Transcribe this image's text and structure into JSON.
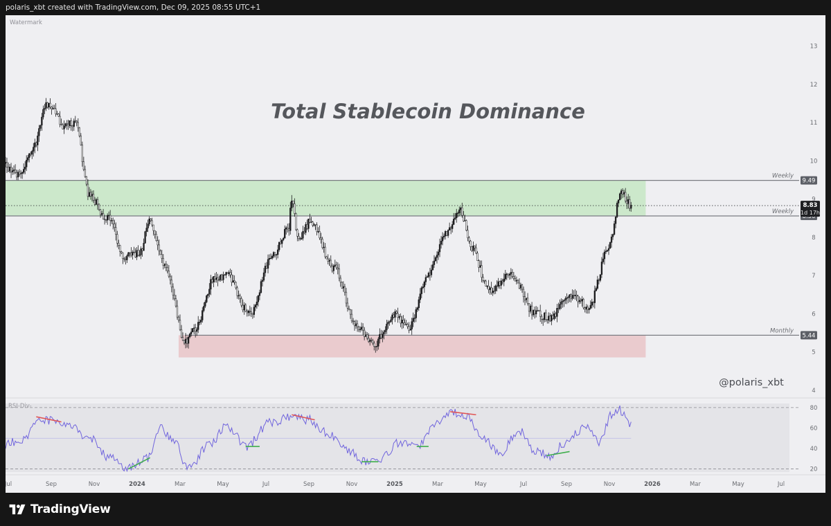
{
  "header": {
    "caption": "polaris_xbt created with TradingView.com, Dec 09, 2025 08:55 UTC+1"
  },
  "footer": {
    "brand": "TradingView"
  },
  "chart": {
    "watermark": "Watermark",
    "title": "Total Stablecoin Dominance",
    "author_tag": "@polaris_xbt",
    "indicator_label": "RSI-Div-"
  },
  "chart_data": [
    {
      "type": "candlestick",
      "title": "Total Stablecoin Dominance",
      "y_ticks": [
        4,
        5,
        6,
        7,
        8,
        9,
        10,
        11,
        12,
        13
      ],
      "ylim": [
        3.8,
        13.7
      ],
      "x_ticks": [
        "Jul",
        "Sep",
        "Nov",
        "2024",
        "Mar",
        "May",
        "Jul",
        "Sep",
        "Nov",
        "2025",
        "Mar",
        "May",
        "Jul",
        "Sep",
        "Nov",
        "2026",
        "Mar",
        "May",
        "Jul"
      ],
      "approx_path": [
        {
          "date": "2023-06-25",
          "value": 9.9
        },
        {
          "date": "2023-07-15",
          "value": 9.6
        },
        {
          "date": "2023-08-05",
          "value": 10.3
        },
        {
          "date": "2023-08-25",
          "value": 11.5
        },
        {
          "date": "2023-09-20",
          "value": 10.9
        },
        {
          "date": "2023-10-05",
          "value": 11.0
        },
        {
          "date": "2023-10-25",
          "value": 9.1
        },
        {
          "date": "2023-11-20",
          "value": 8.5
        },
        {
          "date": "2023-12-15",
          "value": 7.5
        },
        {
          "date": "2024-01-05",
          "value": 7.6
        },
        {
          "date": "2024-01-20",
          "value": 8.4
        },
        {
          "date": "2024-02-10",
          "value": 7.3
        },
        {
          "date": "2024-03-10",
          "value": 5.3
        },
        {
          "date": "2024-03-25",
          "value": 5.6
        },
        {
          "date": "2024-04-20",
          "value": 6.9
        },
        {
          "date": "2024-05-10",
          "value": 7.0
        },
        {
          "date": "2024-06-10",
          "value": 6.0
        },
        {
          "date": "2024-07-15",
          "value": 7.6
        },
        {
          "date": "2024-08-05",
          "value": 8.2
        },
        {
          "date": "2024-08-10",
          "value": 9.0
        },
        {
          "date": "2024-08-20",
          "value": 7.9
        },
        {
          "date": "2024-09-05",
          "value": 8.4
        },
        {
          "date": "2024-10-10",
          "value": 7.2
        },
        {
          "date": "2024-11-10",
          "value": 5.7
        },
        {
          "date": "2024-12-05",
          "value": 5.2
        },
        {
          "date": "2025-01-05",
          "value": 6.0
        },
        {
          "date": "2025-01-25",
          "value": 5.6
        },
        {
          "date": "2025-02-20",
          "value": 7.0
        },
        {
          "date": "2025-03-20",
          "value": 8.1
        },
        {
          "date": "2025-04-08",
          "value": 8.7
        },
        {
          "date": "2025-04-25",
          "value": 7.7
        },
        {
          "date": "2025-05-20",
          "value": 6.6
        },
        {
          "date": "2025-06-20",
          "value": 7.0
        },
        {
          "date": "2025-07-25",
          "value": 6.0
        },
        {
          "date": "2025-08-15",
          "value": 5.9
        },
        {
          "date": "2025-09-10",
          "value": 6.5
        },
        {
          "date": "2025-10-10",
          "value": 6.2
        },
        {
          "date": "2025-11-05",
          "value": 7.6
        },
        {
          "date": "2025-11-25",
          "value": 9.2
        },
        {
          "date": "2025-12-09",
          "value": 8.83
        }
      ],
      "levels": [
        {
          "label": "Weekly",
          "value": 9.49
        },
        {
          "label": "Weekly",
          "value": 8.56
        },
        {
          "label": "Monthly",
          "value": 5.44
        }
      ],
      "zones": [
        {
          "y_top": 9.49,
          "y_bottom": 8.56,
          "x_start": "2023-06-25",
          "x_end": "2025-12-30",
          "color": "#c5e6c4"
        },
        {
          "y_top": 5.44,
          "y_bottom": 4.86,
          "x_start": "2024-03-01",
          "x_end": "2025-12-30",
          "color": "#e9c4c8"
        }
      ],
      "last_price": "8.83",
      "countdown": "1d 17h",
      "dotted_line_value": 8.83
    },
    {
      "type": "line",
      "title": "RSI-Div-",
      "y_ticks": [
        20,
        40,
        60,
        80
      ],
      "ylim": [
        17,
        84
      ],
      "reference_lines": [
        20,
        50,
        80
      ],
      "series_color": "#7064dd",
      "approx_path": [
        {
          "date": "2023-06-25",
          "value": 44
        },
        {
          "date": "2023-07-25",
          "value": 50
        },
        {
          "date": "2023-08-15",
          "value": 70
        },
        {
          "date": "2023-09-05",
          "value": 66
        },
        {
          "date": "2023-09-25",
          "value": 62
        },
        {
          "date": "2023-10-25",
          "value": 50
        },
        {
          "date": "2023-11-25",
          "value": 30
        },
        {
          "date": "2023-12-20",
          "value": 20
        },
        {
          "date": "2024-01-15",
          "value": 30
        },
        {
          "date": "2024-02-05",
          "value": 60
        },
        {
          "date": "2024-02-25",
          "value": 45
        },
        {
          "date": "2024-03-15",
          "value": 20
        },
        {
          "date": "2024-04-15",
          "value": 45
        },
        {
          "date": "2024-05-10",
          "value": 62
        },
        {
          "date": "2024-06-05",
          "value": 42
        },
        {
          "date": "2024-07-10",
          "value": 65
        },
        {
          "date": "2024-08-10",
          "value": 72
        },
        {
          "date": "2024-09-05",
          "value": 68
        },
        {
          "date": "2024-09-30",
          "value": 55
        },
        {
          "date": "2024-10-25",
          "value": 40
        },
        {
          "date": "2024-11-25",
          "value": 27
        },
        {
          "date": "2024-12-15",
          "value": 30
        },
        {
          "date": "2025-01-10",
          "value": 45
        },
        {
          "date": "2025-02-05",
          "value": 42
        },
        {
          "date": "2025-03-05",
          "value": 65
        },
        {
          "date": "2025-03-25",
          "value": 75
        },
        {
          "date": "2025-04-15",
          "value": 72
        },
        {
          "date": "2025-05-10",
          "value": 50
        },
        {
          "date": "2025-06-05",
          "value": 35
        },
        {
          "date": "2025-07-01",
          "value": 58
        },
        {
          "date": "2025-07-25",
          "value": 38
        },
        {
          "date": "2025-08-15",
          "value": 33
        },
        {
          "date": "2025-09-05",
          "value": 45
        },
        {
          "date": "2025-10-05",
          "value": 62
        },
        {
          "date": "2025-10-25",
          "value": 45
        },
        {
          "date": "2025-11-10",
          "value": 72
        },
        {
          "date": "2025-11-22",
          "value": 78
        },
        {
          "date": "2025-12-09",
          "value": 65
        }
      ],
      "divergences": [
        {
          "type": "bearish",
          "color": "#e05555",
          "from": {
            "date": "2023-08-10",
            "value": 71
          },
          "to": {
            "date": "2023-09-15",
            "value": 66
          }
        },
        {
          "type": "bullish",
          "color": "#3fae4c",
          "from": {
            "date": "2023-12-20",
            "value": 20
          },
          "to": {
            "date": "2024-01-20",
            "value": 31
          }
        },
        {
          "type": "bullish",
          "color": "#3fae4c",
          "from": {
            "date": "2024-06-05",
            "value": 42
          },
          "to": {
            "date": "2024-06-25",
            "value": 42
          }
        },
        {
          "type": "bearish",
          "color": "#e05555",
          "from": {
            "date": "2024-08-10",
            "value": 73
          },
          "to": {
            "date": "2024-09-12",
            "value": 68
          }
        },
        {
          "type": "bullish",
          "color": "#3fae4c",
          "from": {
            "date": "2024-11-18",
            "value": 27
          },
          "to": {
            "date": "2024-12-12",
            "value": 27
          }
        },
        {
          "type": "bullish",
          "color": "#3fae4c",
          "from": {
            "date": "2025-02-05",
            "value": 42
          },
          "to": {
            "date": "2025-02-22",
            "value": 42
          }
        },
        {
          "type": "bearish",
          "color": "#e05555",
          "from": {
            "date": "2025-03-25",
            "value": 76
          },
          "to": {
            "date": "2025-05-01",
            "value": 73
          }
        },
        {
          "type": "bullish",
          "color": "#3fae4c",
          "from": {
            "date": "2025-08-10",
            "value": 33
          },
          "to": {
            "date": "2025-09-12",
            "value": 37
          }
        }
      ]
    }
  ]
}
